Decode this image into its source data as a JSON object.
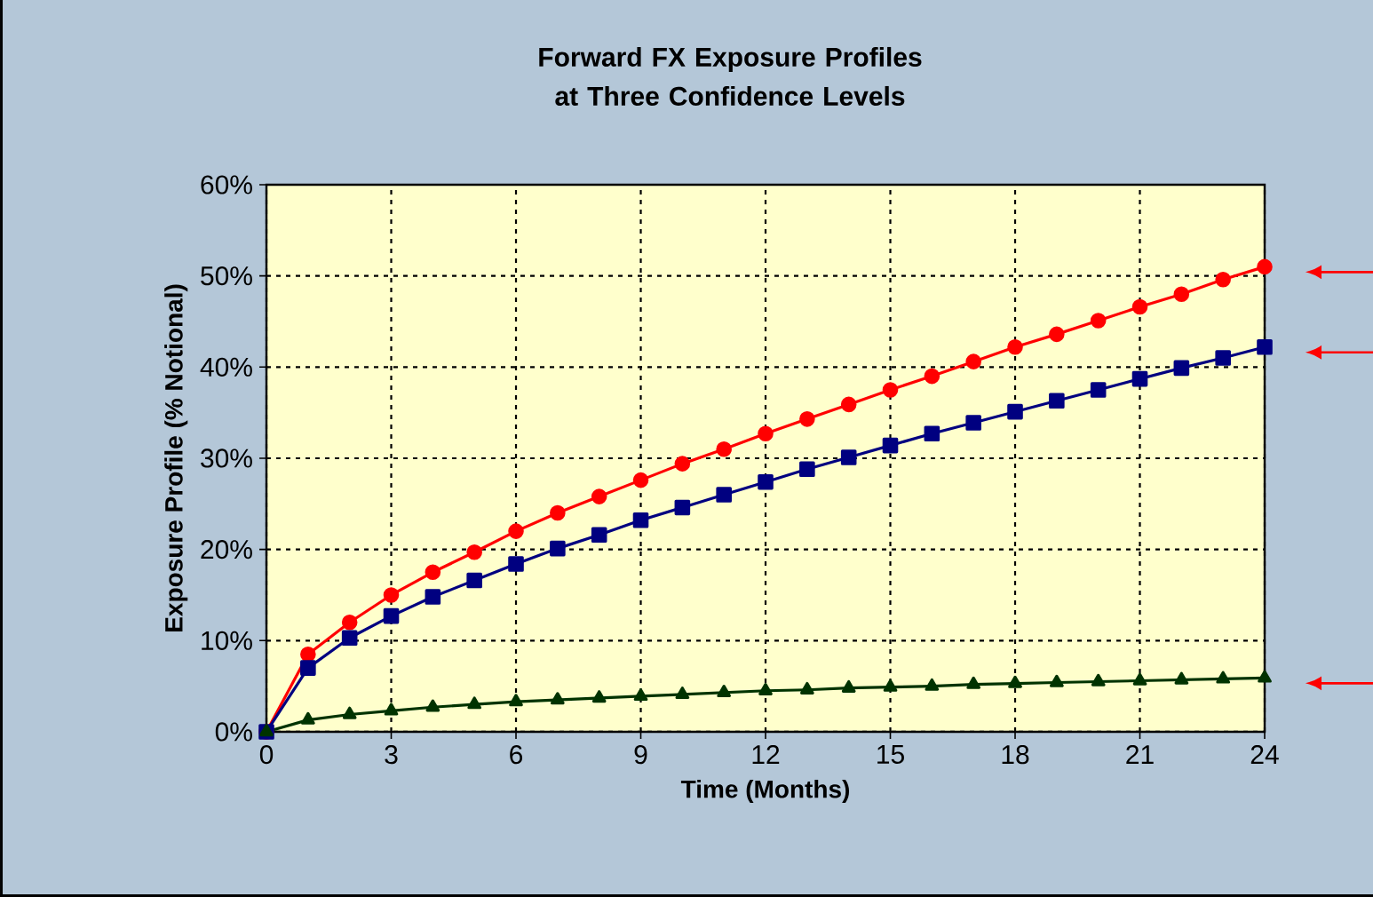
{
  "chart_data": {
    "type": "line",
    "title": "Forward FX Exposure Profiles at Three Confidence Levels",
    "xlabel": "Time (Months)",
    "ylabel": "Exposure Profile (% Notional)",
    "x": [
      0,
      1,
      2,
      3,
      4,
      5,
      6,
      7,
      8,
      9,
      10,
      11,
      12,
      13,
      14,
      15,
      16,
      17,
      18,
      19,
      20,
      21,
      22,
      23,
      24
    ],
    "series": [
      {
        "color": "#ff0000",
        "marker": "circle",
        "values": [
          0,
          8.5,
          12,
          15,
          17.5,
          19.7,
          22,
          24,
          25.8,
          27.6,
          29.4,
          31,
          32.7,
          34.3,
          35.9,
          37.5,
          39,
          40.6,
          42.2,
          43.6,
          45.1,
          46.6,
          48,
          49.6,
          51
        ]
      },
      {
        "color": "#000080",
        "marker": "square",
        "values": [
          0,
          7,
          10.3,
          12.7,
          14.8,
          16.6,
          18.4,
          20.1,
          21.6,
          23.2,
          24.6,
          26,
          27.4,
          28.8,
          30.1,
          31.4,
          32.7,
          33.9,
          35.1,
          36.3,
          37.5,
          38.7,
          39.9,
          41,
          42.2
        ]
      },
      {
        "color": "#003300",
        "marker": "triangle",
        "values": [
          0,
          1.3,
          1.9,
          2.3,
          2.7,
          3,
          3.3,
          3.5,
          3.7,
          3.9,
          4.1,
          4.3,
          4.5,
          4.6,
          4.8,
          4.9,
          5,
          5.2,
          5.3,
          5.4,
          5.5,
          5.6,
          5.7,
          5.8,
          5.9
        ]
      }
    ],
    "xlim": [
      0,
      24
    ],
    "xticks": [
      0,
      3,
      6,
      9,
      12,
      15,
      18,
      21,
      24
    ],
    "ylim": [
      0,
      60
    ],
    "yticks": [
      {
        "value": 0,
        "label": "0%"
      },
      {
        "value": 10,
        "label": "10%"
      },
      {
        "value": 20,
        "label": "20%"
      },
      {
        "value": 30,
        "label": "30%"
      },
      {
        "value": 40,
        "label": "40%"
      },
      {
        "value": 50,
        "label": "50%"
      },
      {
        "value": 60,
        "label": "60%"
      }
    ],
    "grid": true,
    "line_style": "solid"
  }
}
